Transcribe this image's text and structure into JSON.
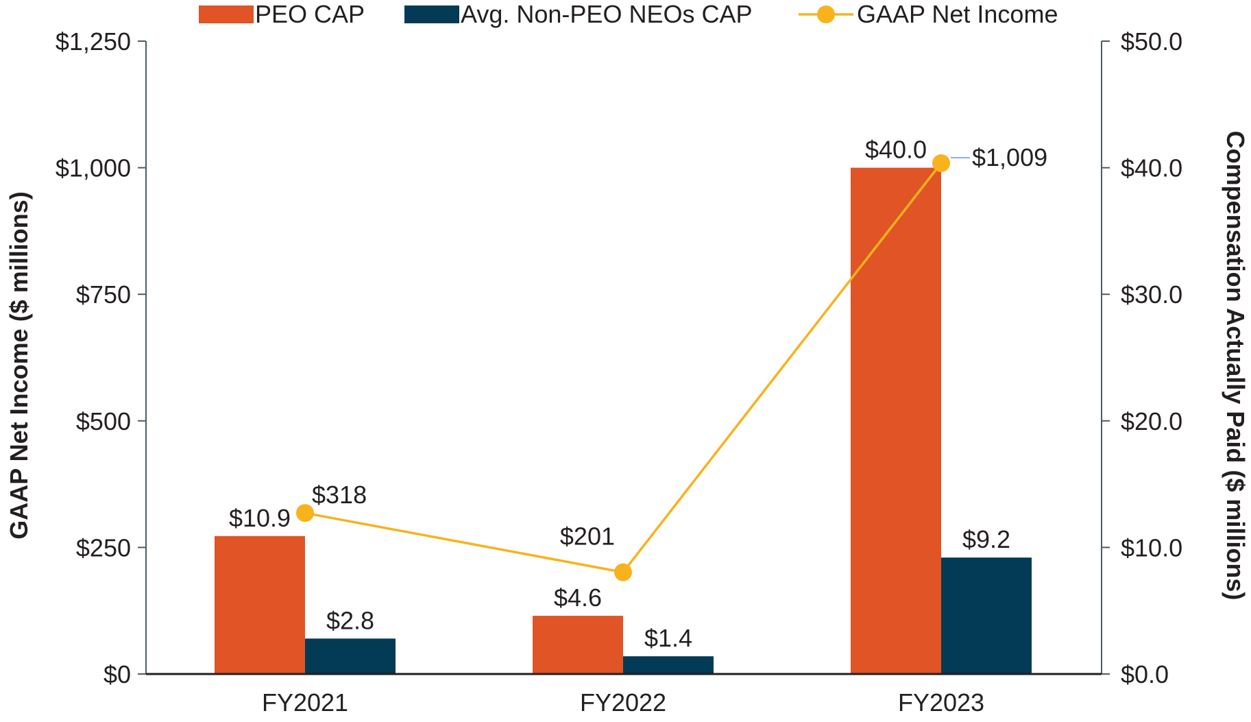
{
  "chart_data": {
    "type": "bar",
    "categories": [
      "FY2021",
      "FY2022",
      "FY2023"
    ],
    "series": [
      {
        "name": "PEO CAP",
        "axis": "right",
        "kind": "bar",
        "color": "#e05425",
        "values": [
          10.9,
          4.6,
          40.0
        ],
        "labels": [
          "$10.9",
          "$4.6",
          "$40.0"
        ]
      },
      {
        "name": "Avg. Non-PEO NEOs CAP",
        "axis": "right",
        "kind": "bar",
        "color": "#033a56",
        "values": [
          2.8,
          1.4,
          9.2
        ],
        "labels": [
          "$2.8",
          "$1.4",
          "$9.2"
        ]
      },
      {
        "name": "GAAP Net Income",
        "axis": "left",
        "kind": "line",
        "color": "#f8b21c",
        "values": [
          318,
          201,
          1009
        ],
        "labels": [
          "$318",
          "$201",
          "$1,009"
        ]
      }
    ],
    "left_axis": {
      "label": "GAAP Net Income ($ millions)",
      "ylim": [
        0,
        1250
      ],
      "ticks": [
        0,
        250,
        500,
        750,
        1000,
        1250
      ],
      "tick_labels": [
        "$0",
        "$250",
        "$500",
        "$750",
        "$1,000",
        "$1,250"
      ]
    },
    "right_axis": {
      "label": "Compensation Actually Paid ($ millions)",
      "ylim": [
        0,
        50
      ],
      "ticks": [
        0,
        10,
        20,
        30,
        40,
        50
      ],
      "tick_labels": [
        "$0.0",
        "$10.0",
        "$20.0",
        "$30.0",
        "$40.0",
        "$50.0"
      ]
    },
    "legend_position": "top",
    "grid": false,
    "title": ""
  }
}
